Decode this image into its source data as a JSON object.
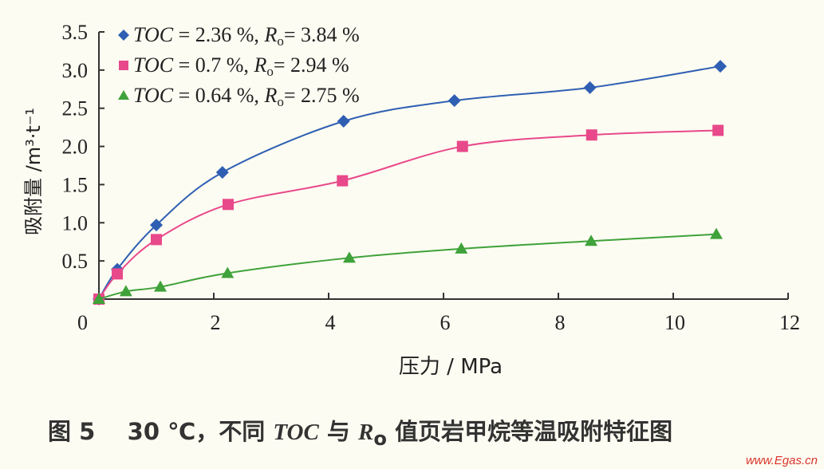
{
  "chart_data": {
    "type": "scatter",
    "xlabel": "压力 / MPa",
    "ylabel": "吸附量 /m³·t⁻¹",
    "xlim": [
      0,
      12
    ],
    "ylim": [
      0,
      3.5
    ],
    "xticks": [
      "0",
      "2",
      "4",
      "6",
      "8",
      "10",
      "12"
    ],
    "yticks": [
      "0.5",
      "1.0",
      "1.5",
      "2.0",
      "2.5",
      "3.0",
      "3.5"
    ],
    "origin_label": "0",
    "grid": false,
    "legend_position": "top-left",
    "series": [
      {
        "name": "TOC = 2.36 %, Ro = 3.84 %",
        "toc": "2.36 %",
        "ro": "3.84 %",
        "marker": "diamond",
        "color": "#2f5fb3",
        "x": [
          0,
          0.32,
          1.0,
          2.15,
          4.26,
          6.19,
          8.55,
          10.82
        ],
        "y": [
          0,
          0.39,
          0.97,
          1.66,
          2.33,
          2.6,
          2.77,
          3.05
        ]
      },
      {
        "name": "TOC = 0.7 %, Ro = 2.94 %",
        "toc": "0.7 %",
        "ro": "2.94 %",
        "marker": "square",
        "color": "#e8498a",
        "x": [
          0,
          0.32,
          1.0,
          2.25,
          4.24,
          6.33,
          8.58,
          10.78
        ],
        "y": [
          0,
          0.33,
          0.78,
          1.24,
          1.55,
          2.0,
          2.15,
          2.21
        ]
      },
      {
        "name": "TOC = 0.64 %, Ro = 2.75 %",
        "toc": "0.64 %",
        "ro": "2.75 %",
        "marker": "triangle",
        "color": "#3fa23a",
        "x": [
          0,
          0.47,
          1.07,
          2.24,
          4.36,
          6.31,
          8.57,
          10.75
        ],
        "y": [
          0,
          0.1,
          0.16,
          0.34,
          0.54,
          0.66,
          0.76,
          0.85
        ]
      }
    ]
  },
  "caption": {
    "fig": "图 5",
    "temp": "30 ℃，不同 ",
    "toc": "TOC",
    "mid": " 与 ",
    "ro": "R",
    "ro_sub": "o",
    "rest": " 值页岩甲烷等温吸附特征图"
  },
  "watermark": "www.Egas.cn"
}
